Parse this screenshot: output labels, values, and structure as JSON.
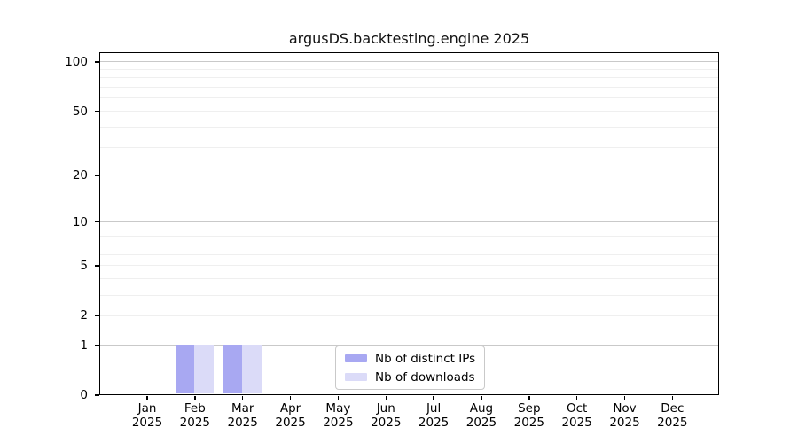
{
  "chart_data": {
    "type": "bar",
    "title": "argusDS.backtesting.engine 2025",
    "x": {
      "months": [
        "Jan",
        "Feb",
        "Mar",
        "Apr",
        "May",
        "Jun",
        "Jul",
        "Aug",
        "Sep",
        "Oct",
        "Nov",
        "Dec"
      ],
      "year": "2025"
    },
    "categories": [
      "Jan 2025",
      "Feb 2025",
      "Mar 2025",
      "Apr 2025",
      "May 2025",
      "Jun 2025",
      "Jul 2025",
      "Aug 2025",
      "Sep 2025",
      "Oct 2025",
      "Nov 2025",
      "Dec 2025"
    ],
    "series": [
      {
        "name": "Nb of distinct IPs",
        "color": "#a8a8f2",
        "values": [
          0,
          1,
          1,
          0,
          0,
          0,
          0,
          0,
          0,
          0,
          0,
          0
        ]
      },
      {
        "name": "Nb of downloads",
        "color": "#dbdbf8",
        "values": [
          0,
          1,
          1,
          0,
          0,
          0,
          0,
          0,
          0,
          0,
          0,
          0
        ]
      }
    ],
    "y_axis": {
      "scale": "log1p",
      "ticks": [
        0,
        1,
        2,
        5,
        10,
        20,
        50,
        100
      ],
      "major_grid": [
        1,
        10,
        100
      ],
      "ylim": [
        0,
        115
      ]
    },
    "legend": {
      "position": "lower center",
      "items": [
        "Nb of distinct IPs",
        "Nb of downloads"
      ]
    },
    "grid_on": true
  }
}
